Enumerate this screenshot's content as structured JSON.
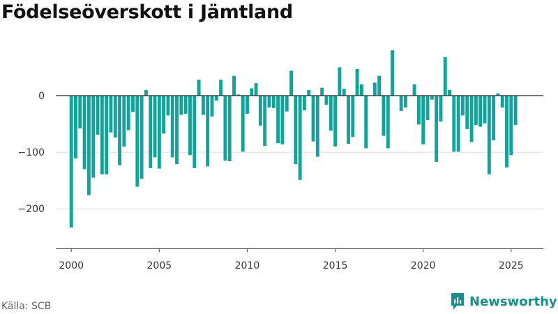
{
  "title": "Födelseöverskott i Jämtland",
  "source": "Källa: SCB",
  "brand": {
    "name": "Newsworthy"
  },
  "colors": {
    "bar": "#13a39b",
    "grid": "#dddddd",
    "zero_line": "#333333",
    "brand": "#1a8f8a"
  },
  "chart_data": {
    "type": "bar",
    "title": "Födelseöverskott i Jämtland",
    "xlabel": "",
    "ylabel": "",
    "x_ticks": [
      2000,
      2005,
      2010,
      2015,
      2020,
      2025
    ],
    "y_ticks": [
      0,
      -100,
      -200
    ],
    "y_tick_labels": [
      "0",
      "−100",
      "−200"
    ],
    "ylim": [
      -270,
      95
    ],
    "xlim": [
      1999.12,
      2026.83
    ],
    "grid": true,
    "legend": "none",
    "x_start": 2000.0,
    "x_step": 0.25,
    "values": [
      -233,
      -111,
      -58,
      -130,
      -176,
      -145,
      -69,
      -139,
      -139,
      -65,
      -74,
      -123,
      -90,
      -61,
      -29,
      -161,
      -147,
      10,
      -128,
      -109,
      -129,
      -67,
      -35,
      -109,
      -121,
      -34,
      -32,
      -105,
      -128,
      28,
      -34,
      -125,
      -37,
      -9,
      28,
      -115,
      -116,
      35,
      2,
      -99,
      -32,
      13,
      22,
      -53,
      -89,
      -21,
      -22,
      -84,
      -86,
      -28,
      44,
      -121,
      -149,
      -26,
      10,
      -81,
      -108,
      14,
      -16,
      -62,
      -90,
      50,
      12,
      -85,
      -73,
      47,
      20,
      -93,
      0,
      23,
      35,
      -71,
      -93,
      80,
      0,
      -27,
      -21,
      0,
      20,
      -51,
      -86,
      -43,
      -7,
      -117,
      -46,
      68,
      10,
      -99,
      -99,
      -35,
      -59,
      -82,
      -52,
      -55,
      -49,
      -139,
      -79,
      4,
      -21,
      -127,
      -105,
      -52
    ]
  }
}
